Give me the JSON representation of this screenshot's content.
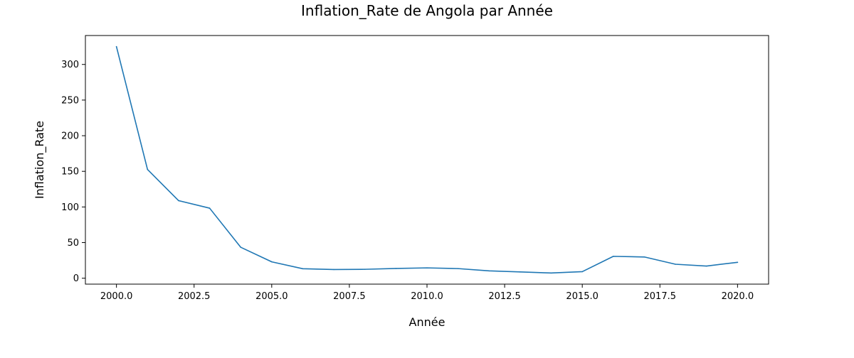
{
  "chart_data": {
    "type": "line",
    "title": "Inflation_Rate de Angola par Année",
    "xlabel": "Année",
    "ylabel": "Inflation_Rate",
    "xlim": [
      1999.0,
      2021.0
    ],
    "ylim": [
      -8.3,
      340.6
    ],
    "x_ticks": [
      2000.0,
      2002.5,
      2005.0,
      2007.5,
      2010.0,
      2012.5,
      2015.0,
      2017.5,
      2020.0
    ],
    "x_tick_labels": [
      "2000.0",
      "2002.5",
      "2005.0",
      "2007.5",
      "2010.0",
      "2012.5",
      "2015.0",
      "2017.5",
      "2020.0"
    ],
    "y_ticks": [
      0,
      50,
      100,
      150,
      200,
      250,
      300
    ],
    "y_tick_labels": [
      "0",
      "50",
      "100",
      "150",
      "200",
      "250",
      "300"
    ],
    "grid": false,
    "series": [
      {
        "color": "#1f77b4",
        "x": [
          2000,
          2001,
          2002,
          2003,
          2004,
          2005,
          2006,
          2007,
          2008,
          2009,
          2010,
          2011,
          2012,
          2013,
          2014,
          2015,
          2016,
          2017,
          2018,
          2019,
          2020
        ],
        "values": [
          325.0,
          152.6,
          108.9,
          98.3,
          43.5,
          23.0,
          13.3,
          12.2,
          12.5,
          13.7,
          14.5,
          13.5,
          10.3,
          8.8,
          7.3,
          9.2,
          30.7,
          29.8,
          19.6,
          17.1,
          22.3
        ]
      }
    ]
  }
}
